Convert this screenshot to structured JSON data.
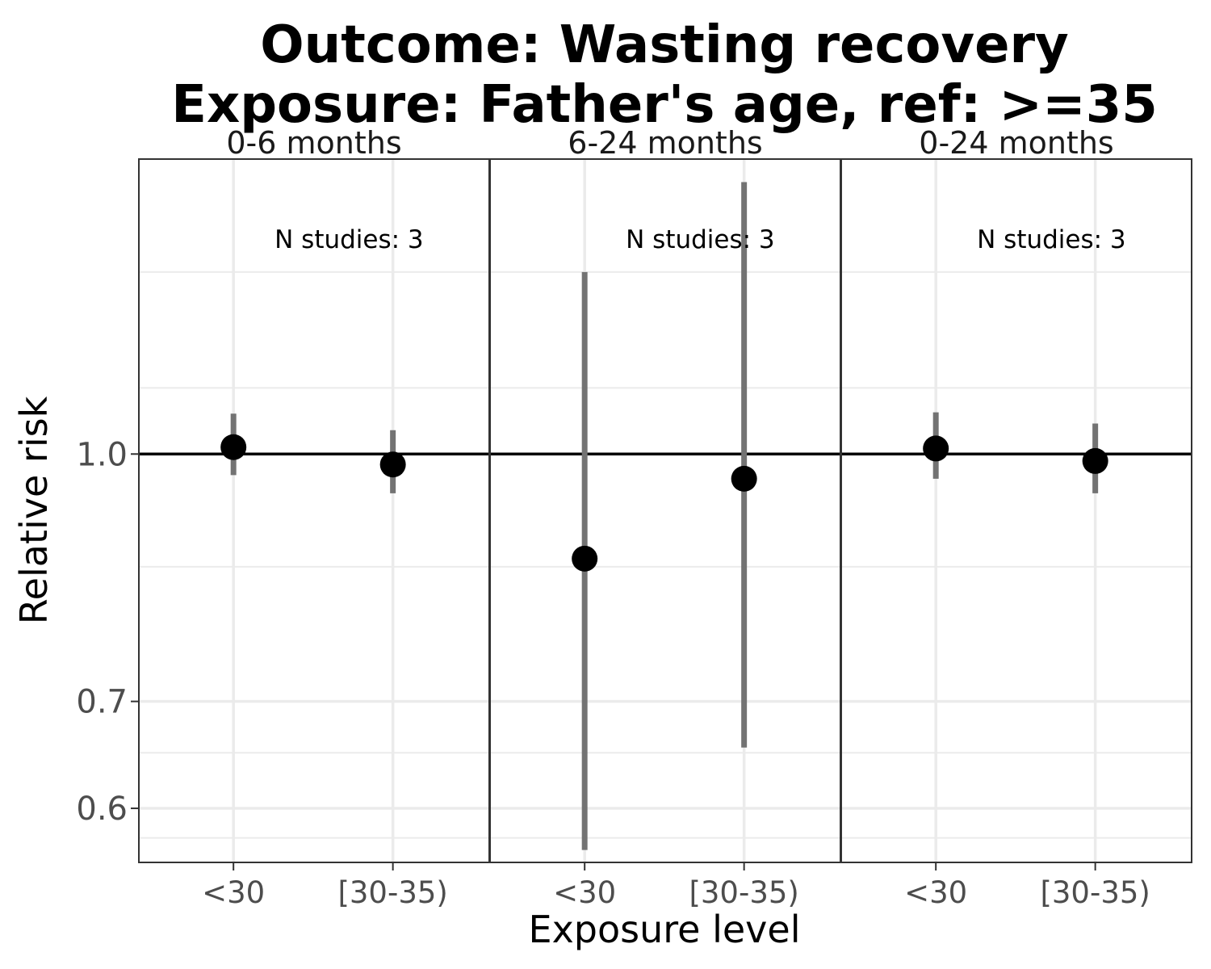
{
  "chart_data": {
    "type": "scatter",
    "title_lines": [
      "Outcome: Wasting recovery",
      "Exposure: Father's age, ref: >=35"
    ],
    "xlabel": "Exposure level",
    "ylabel": "Relative risk",
    "y_scale": "log",
    "ylim": [
      0.555,
      1.53
    ],
    "y_ticks": [
      {
        "value": 0.6,
        "label": "0.6"
      },
      {
        "value": 0.7,
        "label": "0.7"
      },
      {
        "value": 1.0,
        "label": "1.0"
      }
    ],
    "y_minor_grid": [
      0.575,
      0.65,
      0.85,
      1.1,
      1.3
    ],
    "reference_line": 1.0,
    "categories": [
      "<30",
      "[30-35)"
    ],
    "grid": true,
    "legend": "none",
    "panels": [
      {
        "label": "0-6 months",
        "annotation": "N studies: 3",
        "points": [
          {
            "x": "<30",
            "y": 1.01,
            "lower": 0.97,
            "upper": 1.06
          },
          {
            "x": "[30-35)",
            "y": 0.985,
            "lower": 0.945,
            "upper": 1.035
          }
        ]
      },
      {
        "label": "6-24 months",
        "annotation": "N studies: 3",
        "points": [
          {
            "x": "<30",
            "y": 0.86,
            "lower": 0.565,
            "upper": 1.3
          },
          {
            "x": "[30-35)",
            "y": 0.965,
            "lower": 0.655,
            "upper": 1.48
          }
        ]
      },
      {
        "label": "0-24 months",
        "annotation": "N studies: 3",
        "points": [
          {
            "x": "<30",
            "y": 1.008,
            "lower": 0.965,
            "upper": 1.062
          },
          {
            "x": "[30-35)",
            "y": 0.99,
            "lower": 0.945,
            "upper": 1.045
          }
        ]
      }
    ]
  },
  "colors": {
    "point": "#000000",
    "error_bar": "#737373",
    "reference_line": "#000000",
    "grid": "#ebebeb",
    "panel_border": "#333333"
  }
}
